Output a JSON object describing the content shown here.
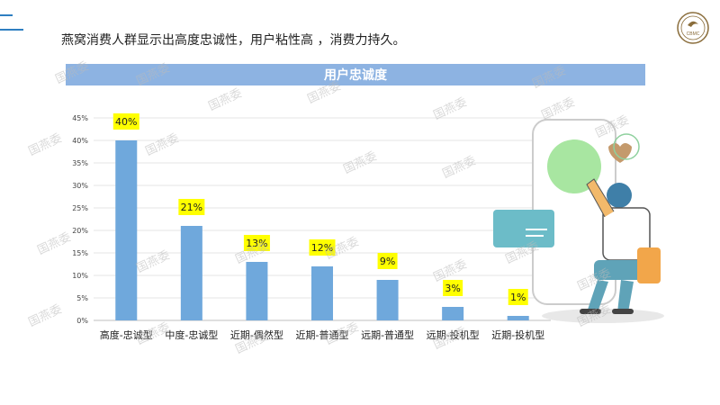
{
  "header": {
    "headline": "燕窝消费人群显示出高度忠诚性，用户粘性高 ，消费力持久。",
    "logo_text": "CBMC"
  },
  "banner": {
    "title": "用户忠诚度"
  },
  "watermark": {
    "text": "国燕委"
  },
  "chart_data": {
    "type": "bar",
    "title": "用户忠诚度",
    "categories": [
      "高度-忠诚型",
      "中度-忠诚型",
      "近期-偶然型",
      "近期-普通型",
      "远期-普通型",
      "远期-投机型",
      "近期-投机型"
    ],
    "values": [
      40,
      21,
      13,
      12,
      9,
      3,
      1
    ],
    "data_labels": [
      "40%",
      "21%",
      "13%",
      "12%",
      "9%",
      "3%",
      "1%"
    ],
    "yticks": [
      "0%",
      "5%",
      "10%",
      "15%",
      "20%",
      "25%",
      "30%",
      "35%",
      "40%",
      "45%"
    ],
    "ylim": [
      0,
      45
    ],
    "grid": true,
    "colors": {
      "bar": "#6fa8dc",
      "label_bg": "#ffff00",
      "banner": "#8db3e2",
      "accent": "#2f7fc1"
    }
  }
}
